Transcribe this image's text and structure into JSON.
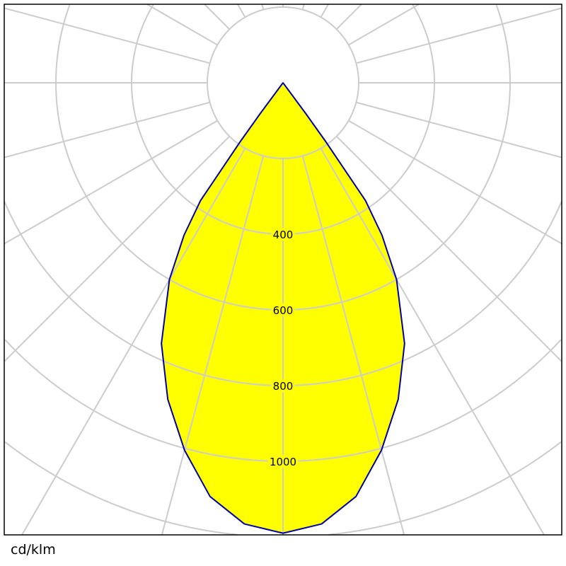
{
  "chart_data": {
    "type": "polar",
    "title": "",
    "unit_label": "cd/klm",
    "radial_ticks": [
      400,
      600,
      800,
      1000
    ],
    "radial_grid": [
      200,
      400,
      600,
      800,
      1000,
      1200,
      1400,
      1600
    ],
    "angular_grid_step_deg": 15,
    "grid": true,
    "colors": {
      "fill": "#ffff00",
      "line": "#0000aa",
      "grid": "#cccccc",
      "frame": "#000000"
    },
    "series": [
      {
        "angles_deg": [
          0,
          5,
          10,
          15,
          20,
          25,
          30,
          33,
          35,
          36,
          36.5,
          37
        ],
        "values": [
          1190,
          1170,
          1110,
          1005,
          890,
          760,
          600,
          480,
          380,
          190,
          100,
          0
        ],
        "symmetric": true
      }
    ]
  }
}
